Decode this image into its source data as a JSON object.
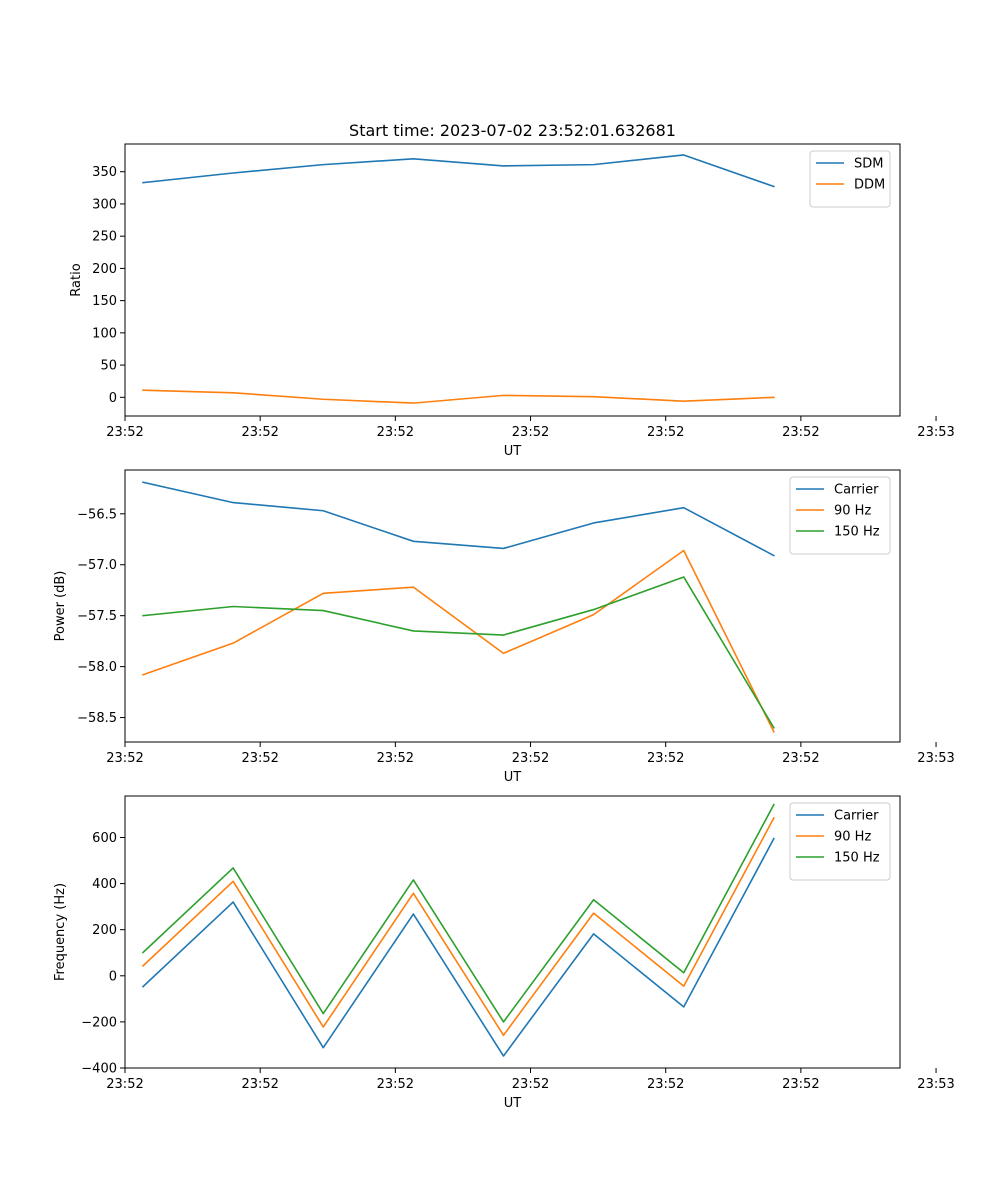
{
  "figure": {
    "title": "Start time: 2023-07-02 23:52:01.632681"
  },
  "chart_data": [
    {
      "type": "line",
      "title": "Start time: 2023-07-02 23:52:01.632681",
      "xlabel": "UT",
      "ylabel": "Ratio",
      "x": [
        1,
        2,
        3,
        4,
        5,
        6,
        7,
        8
      ],
      "xlim": [
        0.8,
        9.4
      ],
      "x_ticks": [
        0.8,
        2.3,
        3.8,
        5.3,
        6.8,
        8.3,
        9.8
      ],
      "x_tick_labels": [
        "23:52",
        "23:52",
        "23:52",
        "23:52",
        "23:52",
        "23:52",
        "23:53"
      ],
      "ylim": [
        -29,
        393
      ],
      "y_ticks": [
        0,
        50,
        100,
        150,
        200,
        250,
        300,
        350
      ],
      "y_tick_labels": [
        "0",
        "50",
        "100",
        "150",
        "200",
        "250",
        "300",
        "350"
      ],
      "legend": "top-right",
      "series": [
        {
          "name": "SDM",
          "color": "#1f77b4",
          "values": [
            333,
            348,
            361,
            370,
            359,
            361,
            376,
            327
          ]
        },
        {
          "name": "DDM",
          "color": "#ff7f0e",
          "values": [
            11,
            7,
            -3,
            -9,
            3,
            1,
            -6,
            0
          ]
        }
      ]
    },
    {
      "type": "line",
      "title": "",
      "xlabel": "UT",
      "ylabel": "Power (dB)",
      "x": [
        1,
        2,
        3,
        4,
        5,
        6,
        7,
        8
      ],
      "xlim": [
        0.8,
        9.4
      ],
      "x_ticks": [
        0.8,
        2.3,
        3.8,
        5.3,
        6.8,
        8.3,
        9.8
      ],
      "x_tick_labels": [
        "23:52",
        "23:52",
        "23:52",
        "23:52",
        "23:52",
        "23:52",
        "23:53"
      ],
      "ylim": [
        -58.74,
        -56.07
      ],
      "y_ticks": [
        -58.5,
        -58.0,
        -57.5,
        -57.0,
        -56.5
      ],
      "y_tick_labels": [
        "−58.5",
        "−58.0",
        "−57.5",
        "−57.0",
        "−56.5"
      ],
      "legend": "top-right",
      "series": [
        {
          "name": "Carrier",
          "color": "#1f77b4",
          "values": [
            -56.19,
            -56.39,
            -56.47,
            -56.77,
            -56.84,
            -56.59,
            -56.44,
            -56.91
          ]
        },
        {
          "name": "90 Hz",
          "color": "#ff7f0e",
          "values": [
            -58.08,
            -57.77,
            -57.28,
            -57.22,
            -57.87,
            -57.49,
            -56.86,
            -58.64
          ]
        },
        {
          "name": "150 Hz",
          "color": "#2ca02c",
          "values": [
            -57.5,
            -57.41,
            -57.45,
            -57.65,
            -57.69,
            -57.44,
            -57.12,
            -58.6
          ]
        }
      ]
    },
    {
      "type": "line",
      "title": "",
      "xlabel": "UT",
      "ylabel": "Frequency (Hz)",
      "x": [
        1,
        2,
        3,
        4,
        5,
        6,
        7,
        8
      ],
      "xlim": [
        0.8,
        9.4
      ],
      "x_ticks": [
        0.8,
        2.3,
        3.8,
        5.3,
        6.8,
        8.3,
        9.8
      ],
      "x_tick_labels": [
        "23:52",
        "23:52",
        "23:52",
        "23:52",
        "23:52",
        "23:52",
        "23:53"
      ],
      "ylim": [
        -400,
        780
      ],
      "y_ticks": [
        -400,
        -200,
        0,
        200,
        400,
        600
      ],
      "y_tick_labels": [
        "−400",
        "−200",
        "0",
        "200",
        "400",
        "600"
      ],
      "legend": "top-right",
      "series": [
        {
          "name": "Carrier",
          "color": "#1f77b4",
          "values": [
            -47,
            320,
            -312,
            268,
            -348,
            182,
            -135,
            595
          ]
        },
        {
          "name": "90 Hz",
          "color": "#ff7f0e",
          "values": [
            43,
            410,
            -222,
            358,
            -258,
            272,
            -45,
            685
          ]
        },
        {
          "name": "150 Hz",
          "color": "#2ca02c",
          "values": [
            101,
            468,
            -164,
            416,
            -200,
            330,
            13,
            743
          ]
        }
      ]
    }
  ]
}
